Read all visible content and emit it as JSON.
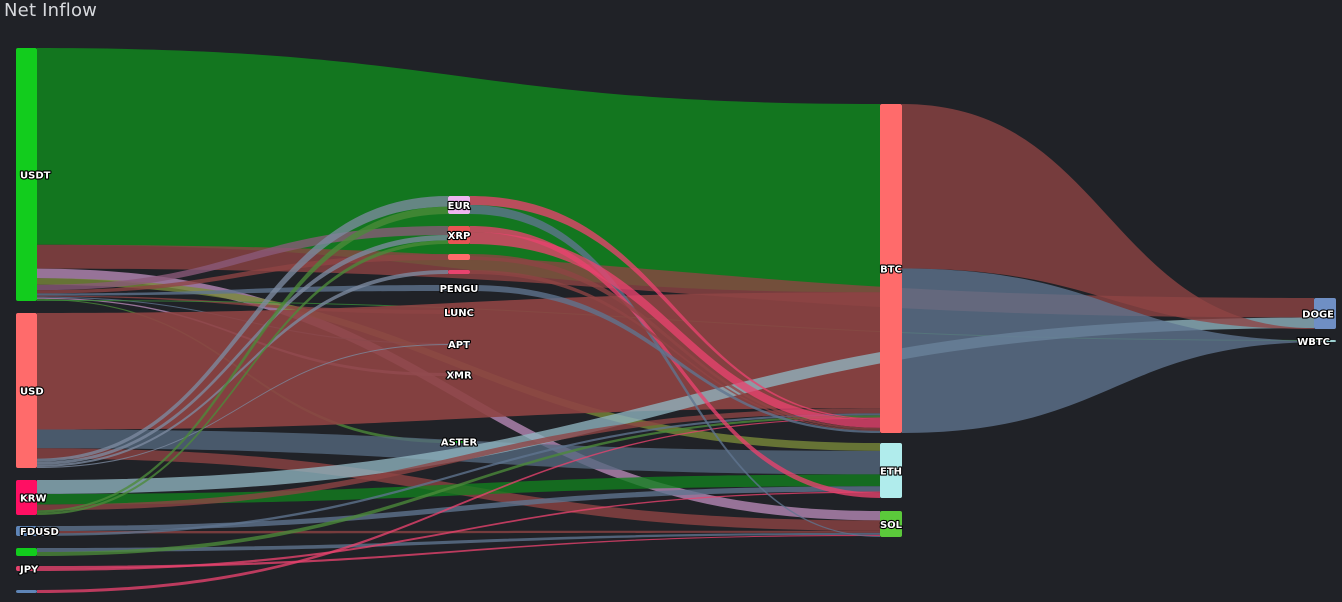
{
  "title": "Net Inflow",
  "chart_data": {
    "type": "sankey",
    "title": "Net Inflow",
    "colors": {
      "usdt": "#12cc1d",
      "usd": "#ff6b6b",
      "krw": "#ff0f63",
      "fdusd": "#5f86b8",
      "jpy": "#e8436e",
      "eur": "#eeb6f0",
      "xrp": "#e85555",
      "btc": "#ff6b6b",
      "eth": "#b0ecec",
      "sol": "#5bc93b",
      "doge": "#6f8fc4",
      "wbtc": "#9fd3d3"
    },
    "nodes": [
      {
        "id": "USDT",
        "label": "USDT",
        "color": "#12cc1d",
        "column": 0
      },
      {
        "id": "USD",
        "label": "USD",
        "color": "#ff6b6b",
        "column": 0
      },
      {
        "id": "KRW",
        "label": "KRW",
        "color": "#ff0f63",
        "column": 0
      },
      {
        "id": "FDUSD",
        "label": "FDUSD",
        "color": "#5f86b8",
        "column": 0
      },
      {
        "id": "SMALL1",
        "label": "",
        "color": "#12cc1d",
        "column": 0
      },
      {
        "id": "JPY",
        "label": "JPY",
        "color": "#e8436e",
        "column": 0
      },
      {
        "id": "SMALL2",
        "label": "",
        "color": "#5f86b8",
        "column": 0
      },
      {
        "id": "EUR",
        "label": "EUR",
        "color": "#eeb6f0",
        "column": 1
      },
      {
        "id": "XRP",
        "label": "XRP",
        "color": "#e85555",
        "column": 1
      },
      {
        "id": "M1",
        "label": "",
        "color": "#ff6b6b",
        "column": 1
      },
      {
        "id": "M2",
        "label": "",
        "color": "#e8436e",
        "column": 1
      },
      {
        "id": "PENGU",
        "label": "PENGU",
        "color": "#5f86b8",
        "column": 1
      },
      {
        "id": "LUNC",
        "label": "LUNC",
        "color": "#ff6b6b",
        "column": 1
      },
      {
        "id": "APT",
        "label": "APT",
        "color": "#5f86b8",
        "column": 1
      },
      {
        "id": "XMR",
        "label": "XMR",
        "color": "#eeb6f0",
        "column": 1
      },
      {
        "id": "ASTER",
        "label": "ASTER",
        "color": "#12cc1d",
        "column": 1
      },
      {
        "id": "BTC",
        "label": "BTC",
        "color": "#ff6b6b",
        "column": 2
      },
      {
        "id": "ETH",
        "label": "ETH",
        "color": "#b0ecec",
        "column": 2
      },
      {
        "id": "SOL",
        "label": "SOL",
        "color": "#5bc93b",
        "column": 2
      },
      {
        "id": "DOGE",
        "label": "DOGE",
        "color": "#6f8fc4",
        "column": 3
      },
      {
        "id": "WBTC",
        "label": "WBTC",
        "color": "#9fd3d3",
        "column": 3
      }
    ],
    "links": [
      {
        "source": "USDT",
        "target": "BTC",
        "value": 182,
        "color": "#12801f"
      },
      {
        "source": "USDT",
        "target": "DOGE",
        "value": 22,
        "color": "#8e4444"
      },
      {
        "source": "USDT",
        "target": "SOL",
        "value": 9,
        "color": "#b98bb9"
      },
      {
        "source": "USDT",
        "target": "ETH",
        "value": 6,
        "color": "#7a8a3a"
      },
      {
        "source": "USDT",
        "target": "XRP",
        "value": 5,
        "color": "#8a5a7a"
      },
      {
        "source": "USDT",
        "target": "M1",
        "value": 3,
        "color": "#8e4444"
      },
      {
        "source": "USDT",
        "target": "PENGU",
        "value": 2,
        "color": "#5f7590"
      },
      {
        "source": "USDT",
        "target": "LUNC",
        "value": 1,
        "color": "#8e4444"
      },
      {
        "source": "USDT",
        "target": "APT",
        "value": 1,
        "color": "#5f7590"
      },
      {
        "source": "USDT",
        "target": "XMR",
        "value": 1,
        "color": "#b98bb9"
      },
      {
        "source": "USDT",
        "target": "ASTER",
        "value": 1,
        "color": "#4c8a3a"
      },
      {
        "source": "USDT",
        "target": "WBTC",
        "value": 1,
        "color": "#3a8a3a"
      },
      {
        "source": "USD",
        "target": "BTC",
        "value": 112,
        "color": "#8e4444"
      },
      {
        "source": "USD",
        "target": "ETH",
        "value": 18,
        "color": "#55697f"
      },
      {
        "source": "USD",
        "target": "SOL",
        "value": 10,
        "color": "#8e4444"
      },
      {
        "source": "USD",
        "target": "EUR",
        "value": 3,
        "color": "#7c8aa0"
      },
      {
        "source": "USD",
        "target": "XRP",
        "value": 3,
        "color": "#7c8aa0"
      },
      {
        "source": "USD",
        "target": "M2",
        "value": 2,
        "color": "#7c8aa0"
      },
      {
        "source": "USD",
        "target": "APT",
        "value": 1,
        "color": "#7c8aa0"
      },
      {
        "source": "KRW",
        "target": "DOGE",
        "value": 12,
        "color": "#8fb5c0"
      },
      {
        "source": "KRW",
        "target": "ETH",
        "value": 9,
        "color": "#12801f"
      },
      {
        "source": "KRW",
        "target": "BTC",
        "value": 5,
        "color": "#8e4444"
      },
      {
        "source": "KRW",
        "target": "EUR",
        "value": 2,
        "color": "#4c8a3a"
      },
      {
        "source": "KRW",
        "target": "XRP",
        "value": 2,
        "color": "#4c8a3a"
      },
      {
        "source": "FDUSD",
        "target": "ETH",
        "value": 4,
        "color": "#5f7590"
      },
      {
        "source": "FDUSD",
        "target": "SOL",
        "value": 2,
        "color": "#8e4444"
      },
      {
        "source": "FDUSD",
        "target": "BTC",
        "value": 2,
        "color": "#5f7590"
      },
      {
        "source": "SMALL1",
        "target": "SOL",
        "value": 2,
        "color": "#5f7590"
      },
      {
        "source": "SMALL1",
        "target": "BTC",
        "value": 2,
        "color": "#4c8a3a"
      },
      {
        "source": "JPY",
        "target": "SOL",
        "value": 1,
        "color": "#e8436e"
      },
      {
        "source": "JPY",
        "target": "ETH",
        "value": 1,
        "color": "#e8436e"
      },
      {
        "source": "SMALL2",
        "target": "BTC",
        "value": 1,
        "color": "#e8436e"
      },
      {
        "source": "EUR",
        "target": "BTC",
        "value": 1,
        "color": "#e8436e"
      },
      {
        "source": "EUR",
        "target": "SOL",
        "value": 1,
        "color": "#5f7590"
      },
      {
        "source": "XRP",
        "target": "ETH",
        "value": 4,
        "color": "#e8436e"
      },
      {
        "source": "XRP",
        "target": "BTC",
        "value": 8,
        "color": "#e8436e"
      },
      {
        "source": "M1",
        "target": "BTC",
        "value": 2,
        "color": "#8e4444"
      },
      {
        "source": "M2",
        "target": "BTC",
        "value": 1,
        "color": "#8e4444"
      },
      {
        "source": "PENGU",
        "target": "BTC",
        "value": 2,
        "color": "#5f7590"
      },
      {
        "source": "BTC",
        "target": "DOGE",
        "value": 1,
        "color": "#8e4444"
      },
      {
        "source": "BTC",
        "target": "WBTC",
        "value": 1,
        "color": "#5f7590"
      }
    ]
  }
}
